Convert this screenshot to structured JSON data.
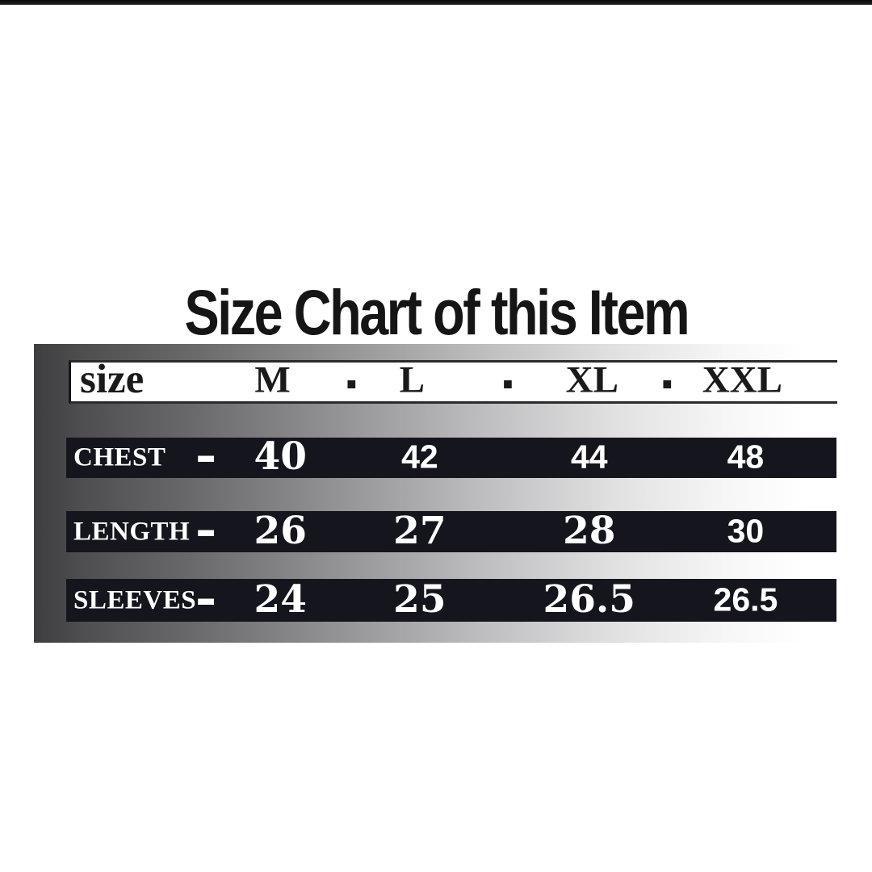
{
  "page": {
    "title": "Size Chart of this Item"
  },
  "size_chart": {
    "header": {
      "label": "size",
      "separator": "-",
      "columns": [
        "M",
        "L",
        "XL",
        "XXL"
      ]
    },
    "rows": [
      {
        "label": "CHEST",
        "dash": "–",
        "values": [
          "40",
          "42",
          "44",
          "48"
        ]
      },
      {
        "label": "LENGTH",
        "dash": "–",
        "values": [
          "26",
          "27",
          "28",
          "30"
        ]
      },
      {
        "label": "SLEEVES",
        "dash": "–",
        "values": [
          "24",
          "25",
          "26.5",
          "26.5"
        ]
      }
    ]
  },
  "colors": {
    "title_text": "#151515",
    "header_background": "#ffffff",
    "header_text": "#1a1a1a",
    "bar_background": "#15151d",
    "value_text": "#ffffff",
    "panel_gradient_left": "#3e3e40",
    "panel_gradient_right": "#ffffff"
  },
  "chart_data": {
    "type": "table",
    "title": "Size Chart of this Item",
    "columns": [
      "size",
      "M",
      "L",
      "XL",
      "XXL"
    ],
    "rows": [
      [
        "CHEST",
        40,
        42,
        44,
        48
      ],
      [
        "LENGTH",
        26,
        27,
        28,
        30
      ],
      [
        "SLEEVES",
        24,
        25,
        26.5,
        26.5
      ]
    ]
  }
}
